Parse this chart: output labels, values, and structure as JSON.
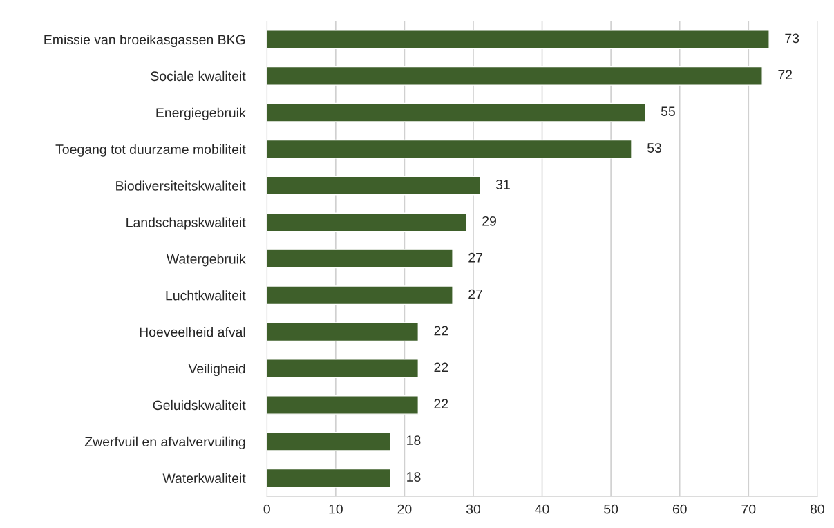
{
  "chart_data": {
    "type": "bar",
    "orientation": "horizontal",
    "categories": [
      "Emissie van broeikasgassen BKG",
      "Sociale kwaliteit",
      "Energiegebruik",
      "Toegang tot duurzame mobiliteit",
      "Biodiversiteitskwaliteit",
      "Landschapskwaliteit",
      "Watergebruik",
      "Luchtkwaliteit",
      "Hoeveelheid afval",
      "Veiligheid",
      "Geluidskwaliteit",
      "Zwerfvuil en afvalvervuiling",
      "Waterkwaliteit"
    ],
    "values": [
      73,
      72,
      55,
      53,
      31,
      29,
      27,
      27,
      22,
      22,
      22,
      18,
      18
    ],
    "color": "#3e5f2a",
    "xlim": [
      0,
      80
    ],
    "xticks": [
      0,
      10,
      20,
      30,
      40,
      50,
      60,
      70,
      80
    ],
    "grid": "x",
    "data_labels": true
  }
}
